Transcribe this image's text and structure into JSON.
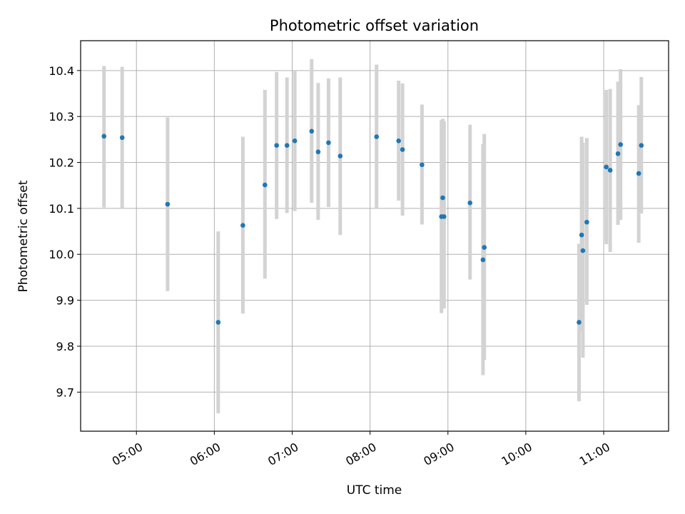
{
  "chart_data": {
    "type": "scatter",
    "title": "Photometric offset variation",
    "xlabel": "UTC time",
    "ylabel": "Photometric offset",
    "x_ticks": [
      "05:00",
      "06:00",
      "07:00",
      "08:00",
      "09:00",
      "10:00",
      "11:00"
    ],
    "y_ticks": [
      "9.7",
      "9.8",
      "9.9",
      "10.0",
      "10.1",
      "10.2",
      "10.3",
      "10.4"
    ],
    "xlim": [
      "04:17",
      "11:50"
    ],
    "ylim": [
      9.615,
      10.465
    ],
    "grid": true,
    "colors": {
      "point": "#1f77b4",
      "errorbar": "#d3d3d3",
      "grid": "#b0b0b0"
    },
    "points": [
      {
        "x": "04:35",
        "y": 10.257,
        "lo": 10.102,
        "hi": 10.41
      },
      {
        "x": "04:49",
        "y": 10.254,
        "lo": 10.1,
        "hi": 10.408
      },
      {
        "x": "05:24",
        "y": 10.109,
        "lo": 9.92,
        "hi": 10.298
      },
      {
        "x": "06:03",
        "y": 9.852,
        "lo": 9.654,
        "hi": 10.05
      },
      {
        "x": "06:22",
        "y": 10.063,
        "lo": 9.871,
        "hi": 10.256
      },
      {
        "x": "06:39",
        "y": 10.151,
        "lo": 9.947,
        "hi": 10.358
      },
      {
        "x": "06:48",
        "y": 10.237,
        "lo": 10.077,
        "hi": 10.397
      },
      {
        "x": "06:56",
        "y": 10.237,
        "lo": 10.09,
        "hi": 10.385
      },
      {
        "x": "07:02",
        "y": 10.247,
        "lo": 10.094,
        "hi": 10.4
      },
      {
        "x": "07:15",
        "y": 10.268,
        "lo": 10.112,
        "hi": 10.425
      },
      {
        "x": "07:20",
        "y": 10.223,
        "lo": 10.075,
        "hi": 10.373
      },
      {
        "x": "07:28",
        "y": 10.243,
        "lo": 10.103,
        "hi": 10.383
      },
      {
        "x": "07:37",
        "y": 10.214,
        "lo": 10.042,
        "hi": 10.385
      },
      {
        "x": "08:05",
        "y": 10.256,
        "lo": 10.1,
        "hi": 10.413
      },
      {
        "x": "08:22",
        "y": 10.247,
        "lo": 10.117,
        "hi": 10.378
      },
      {
        "x": "08:25",
        "y": 10.228,
        "lo": 10.084,
        "hi": 10.372
      },
      {
        "x": "08:40",
        "y": 10.195,
        "lo": 10.065,
        "hi": 10.326
      },
      {
        "x": "08:55",
        "y": 10.082,
        "lo": 9.872,
        "hi": 10.292
      },
      {
        "x": "08:56",
        "y": 10.123,
        "lo": 9.96,
        "hi": 10.295
      },
      {
        "x": "08:57",
        "y": 10.082,
        "lo": 9.882,
        "hi": 10.29
      },
      {
        "x": "09:17",
        "y": 10.112,
        "lo": 9.945,
        "hi": 10.282
      },
      {
        "x": "09:27",
        "y": 9.988,
        "lo": 9.737,
        "hi": 10.24
      },
      {
        "x": "09:28",
        "y": 10.015,
        "lo": 9.77,
        "hi": 10.262
      },
      {
        "x": "10:41",
        "y": 9.852,
        "lo": 9.68,
        "hi": 10.023
      },
      {
        "x": "10:43",
        "y": 10.042,
        "lo": 9.832,
        "hi": 10.256
      },
      {
        "x": "10:44",
        "y": 10.008,
        "lo": 9.775,
        "hi": 10.243
      },
      {
        "x": "10:47",
        "y": 10.07,
        "lo": 9.89,
        "hi": 10.253
      },
      {
        "x": "11:02",
        "y": 10.19,
        "lo": 10.022,
        "hi": 10.358
      },
      {
        "x": "11:05",
        "y": 10.183,
        "lo": 10.005,
        "hi": 10.36
      },
      {
        "x": "11:11",
        "y": 10.219,
        "lo": 10.064,
        "hi": 10.376
      },
      {
        "x": "11:13",
        "y": 10.239,
        "lo": 10.075,
        "hi": 10.403
      },
      {
        "x": "11:27",
        "y": 10.176,
        "lo": 10.025,
        "hi": 10.325
      },
      {
        "x": "11:29",
        "y": 10.237,
        "lo": 10.089,
        "hi": 10.386
      }
    ]
  }
}
